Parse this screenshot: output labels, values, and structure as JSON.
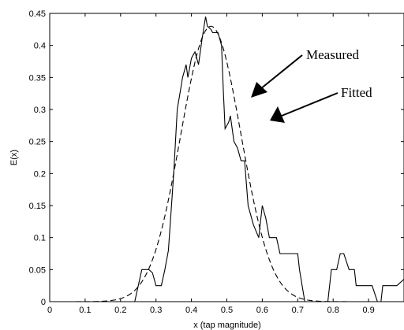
{
  "chart_data": {
    "type": "line",
    "xlabel": "x (tap magnitude)",
    "ylabel": "E(x)",
    "xlim": [
      0,
      1
    ],
    "ylim": [
      0,
      0.45
    ],
    "xticks": [
      "0",
      "0.1",
      "0.2",
      "0.3",
      "0.4",
      "0.5",
      "0.6",
      "0.7",
      "0.8",
      "0.9"
    ],
    "yticks": [
      "0",
      "0.05",
      "0.1",
      "0.15",
      "0.2",
      "0.25",
      "0.3",
      "0.35",
      "0.4",
      "0.45"
    ],
    "grid": false,
    "annotations": [
      {
        "text": "Measured",
        "series": "measured"
      },
      {
        "text": "Fitted",
        "series": "fitted"
      }
    ],
    "series": [
      {
        "id": "measured",
        "style": "solid",
        "color": "#000000",
        "points": [
          [
            0.0,
            0.0
          ],
          [
            0.24,
            0.0
          ],
          [
            0.26,
            0.05
          ],
          [
            0.28,
            0.05
          ],
          [
            0.29,
            0.045
          ],
          [
            0.3,
            0.025
          ],
          [
            0.315,
            0.025
          ],
          [
            0.325,
            0.05
          ],
          [
            0.335,
            0.08
          ],
          [
            0.35,
            0.2
          ],
          [
            0.36,
            0.3
          ],
          [
            0.375,
            0.35
          ],
          [
            0.385,
            0.37
          ],
          [
            0.39,
            0.35
          ],
          [
            0.4,
            0.38
          ],
          [
            0.41,
            0.39
          ],
          [
            0.42,
            0.37
          ],
          [
            0.43,
            0.41
          ],
          [
            0.44,
            0.445
          ],
          [
            0.445,
            0.43
          ],
          [
            0.455,
            0.425
          ],
          [
            0.46,
            0.42
          ],
          [
            0.475,
            0.42
          ],
          [
            0.485,
            0.4
          ],
          [
            0.49,
            0.33
          ],
          [
            0.495,
            0.27
          ],
          [
            0.505,
            0.28
          ],
          [
            0.51,
            0.29
          ],
          [
            0.52,
            0.25
          ],
          [
            0.53,
            0.24
          ],
          [
            0.54,
            0.22
          ],
          [
            0.55,
            0.22
          ],
          [
            0.56,
            0.15
          ],
          [
            0.575,
            0.12
          ],
          [
            0.59,
            0.1
          ],
          [
            0.6,
            0.15
          ],
          [
            0.605,
            0.14
          ],
          [
            0.61,
            0.13
          ],
          [
            0.62,
            0.1
          ],
          [
            0.64,
            0.1
          ],
          [
            0.65,
            0.075
          ],
          [
            0.7,
            0.075
          ],
          [
            0.705,
            0.05
          ],
          [
            0.72,
            0.0
          ],
          [
            0.785,
            0.0
          ],
          [
            0.79,
            0.025
          ],
          [
            0.795,
            0.05
          ],
          [
            0.81,
            0.05
          ],
          [
            0.82,
            0.075
          ],
          [
            0.83,
            0.075
          ],
          [
            0.845,
            0.05
          ],
          [
            0.86,
            0.05
          ],
          [
            0.865,
            0.025
          ],
          [
            0.91,
            0.025
          ],
          [
            0.925,
            0.0
          ],
          [
            0.935,
            0.0
          ],
          [
            0.94,
            0.025
          ],
          [
            0.98,
            0.025
          ],
          [
            1.0,
            0.035
          ]
        ]
      },
      {
        "id": "fitted",
        "style": "dashed",
        "color": "#000000",
        "gaussian": {
          "peak": 0.43,
          "mean": 0.455,
          "sigma": 0.085
        }
      }
    ]
  }
}
